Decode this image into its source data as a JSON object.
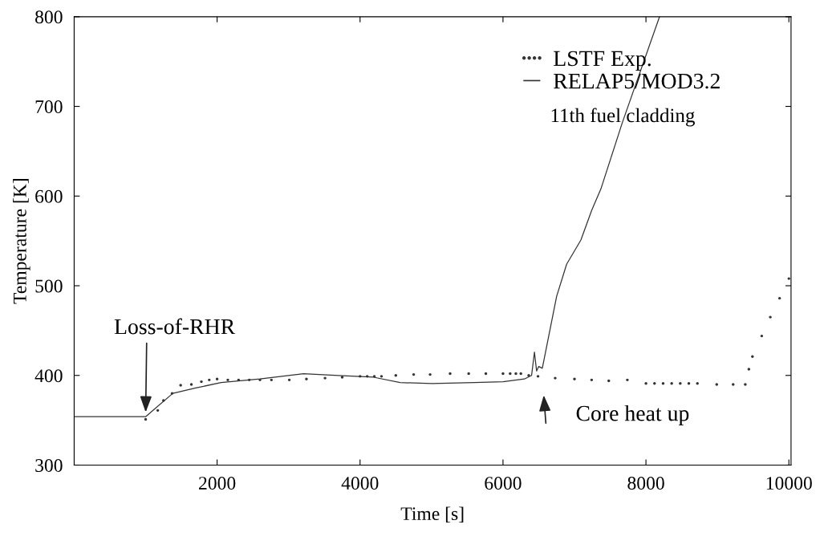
{
  "chart_data": {
    "type": "line",
    "xlabel": "Time [s]",
    "ylabel": "Temperature [K]",
    "xlim": [
      0,
      10030
    ],
    "xticks": [
      2000,
      4000,
      6000,
      8000,
      10000
    ],
    "ylim": [
      300,
      800
    ],
    "yticks": [
      300,
      400,
      500,
      600,
      700,
      800
    ],
    "grid": false,
    "legend": "top right",
    "series": [
      {
        "name": "LSTF Exp.",
        "type": "scatter",
        "color": "#333333",
        "marker": "circle",
        "x": [
          1000,
          1170,
          1250,
          1370,
          1490,
          1640,
          1780,
          1890,
          2000,
          2150,
          2300,
          2450,
          2600,
          2760,
          3010,
          3250,
          3510,
          3750,
          4000,
          4100,
          4200,
          4300,
          4500,
          4750,
          4980,
          5260,
          5520,
          5760,
          6000,
          6100,
          6180,
          6250,
          6360,
          6490,
          6730,
          7000,
          7240,
          7480,
          7740,
          8000,
          8120,
          8240,
          8360,
          8480,
          8600,
          8720,
          8990,
          9220,
          9390,
          9440,
          9490,
          9620,
          9740,
          9870,
          10000
        ],
        "values": [
          351,
          361,
          372,
          380,
          389,
          390,
          393,
          395,
          396,
          395,
          395,
          395,
          395,
          395,
          395,
          396,
          397,
          398,
          399,
          399,
          399,
          399,
          400,
          401,
          401,
          402,
          402,
          402,
          402,
          402,
          402,
          402,
          400,
          399,
          397,
          396,
          395,
          394,
          395,
          391,
          391,
          391,
          391,
          391,
          391,
          391,
          390,
          390,
          390,
          407,
          421,
          444,
          465,
          486,
          508
        ]
      },
      {
        "name": "RELAP5/MOD3.2",
        "color": "#333333",
        "line_style": "solid",
        "x": [
          0,
          1000,
          1380,
          1700,
          2056,
          2600,
          3210,
          3700,
          4190,
          4560,
          5010,
          5600,
          6000,
          6300,
          6400,
          6440,
          6470,
          6500,
          6550,
          6750,
          6890,
          7090,
          7240,
          7370,
          7670,
          8190
        ],
        "values": [
          354,
          354,
          380,
          386,
          392,
          396,
          402,
          400,
          398,
          392,
          391,
          392,
          393,
          396,
          400,
          426,
          405,
          410,
          408,
          488,
          524,
          551,
          584,
          608,
          682,
          800
        ]
      }
    ],
    "annotations": [
      "11th fuel cladding",
      {
        "text": "Loss-of-RHR",
        "x": 1000,
        "y": 354
      },
      {
        "text": "Core heat up",
        "x": 6550,
        "y": 399
      }
    ]
  }
}
